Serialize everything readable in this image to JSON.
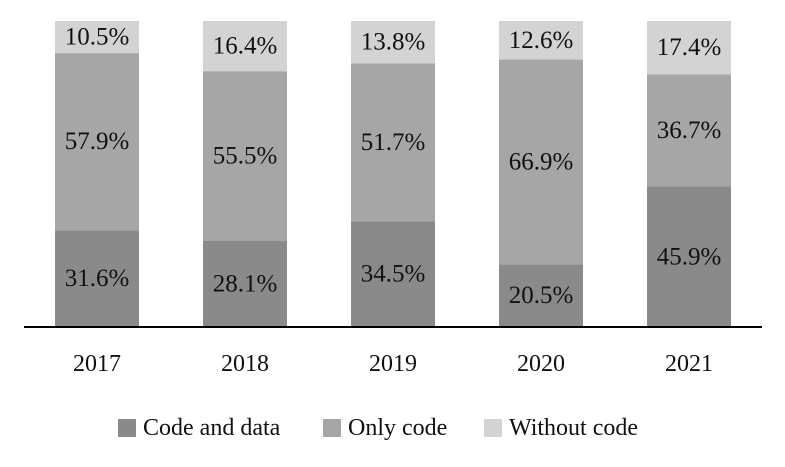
{
  "chart_data": {
    "type": "bar",
    "stacked": true,
    "percent_stacked": true,
    "categories": [
      "2017",
      "2018",
      "2019",
      "2020",
      "2021"
    ],
    "series": [
      {
        "name": "Code and data",
        "color": "#8a8a8a",
        "values": [
          31.6,
          28.1,
          34.5,
          20.5,
          45.9
        ]
      },
      {
        "name": "Only code",
        "color": "#a6a6a6",
        "values": [
          57.9,
          55.5,
          51.7,
          66.9,
          36.7
        ]
      },
      {
        "name": "Without code",
        "color": "#d3d3d3",
        "values": [
          10.5,
          16.4,
          13.8,
          12.6,
          17.4
        ]
      }
    ],
    "value_suffix": "%",
    "ylim": [
      0,
      100
    ],
    "grid": false,
    "legend_position": "bottom"
  }
}
